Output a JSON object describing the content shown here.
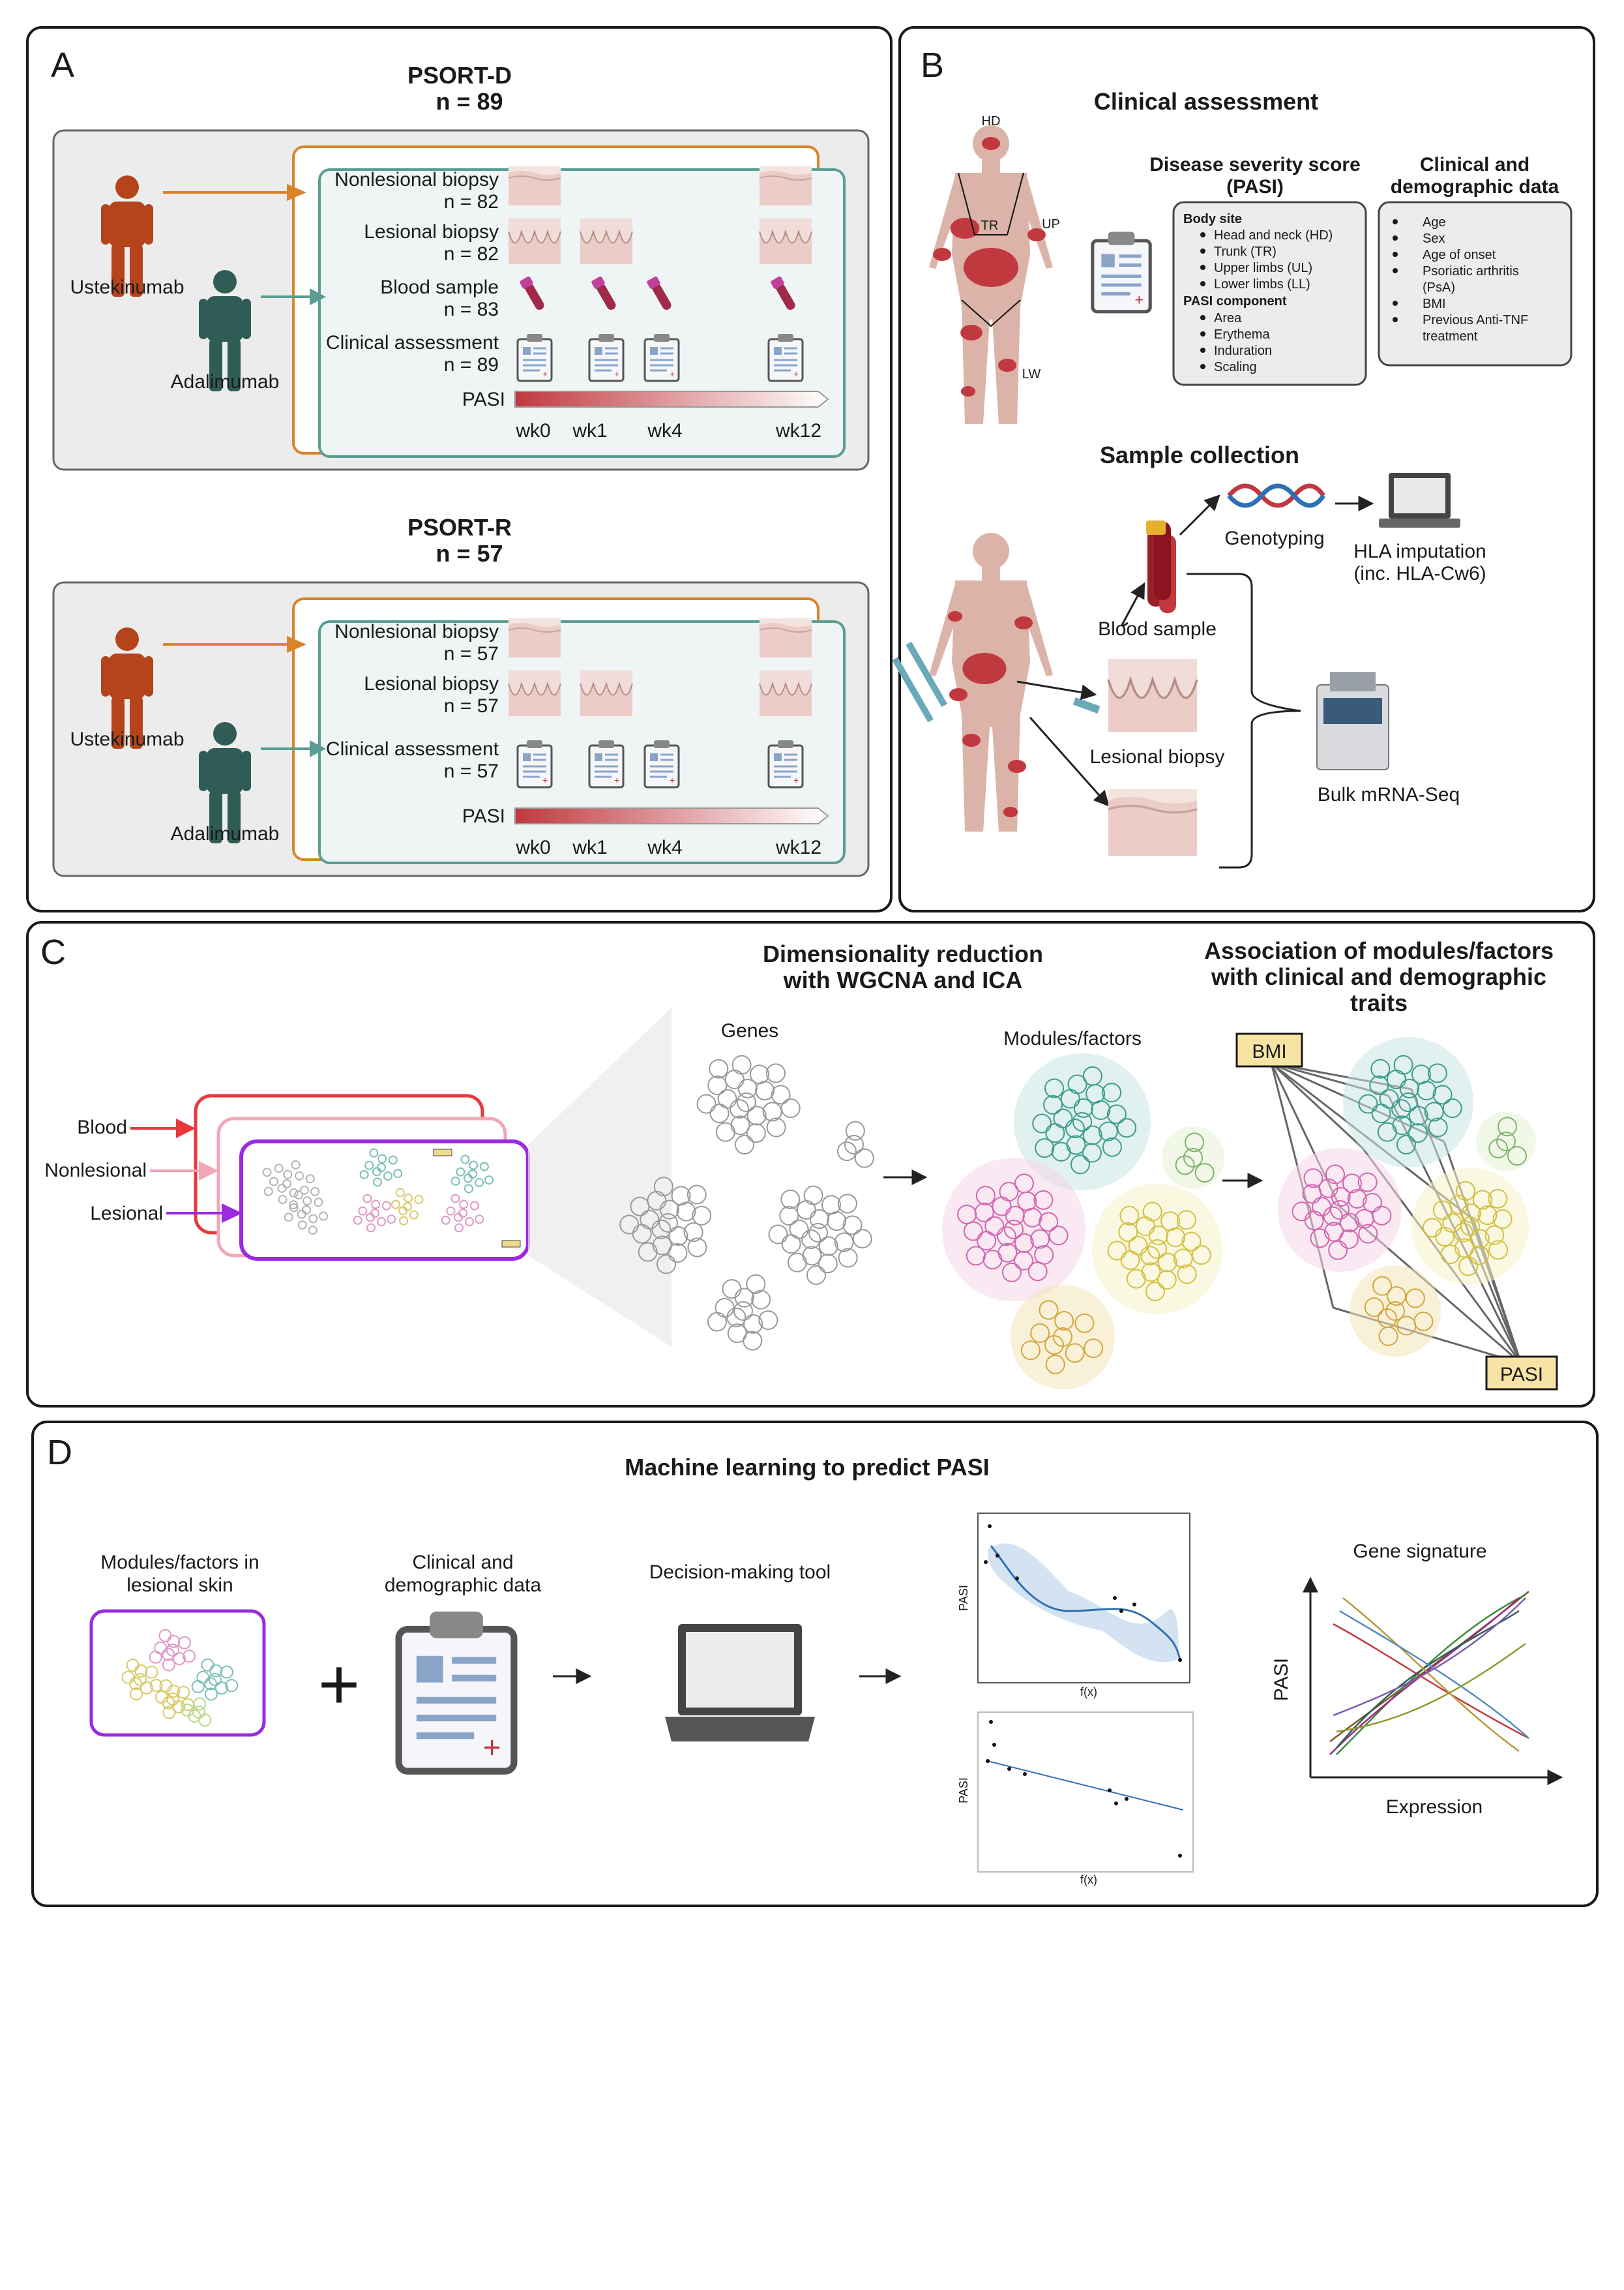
{
  "panelA": {
    "letter": "A",
    "psortd": {
      "title": "PSORT-D",
      "n": "n = 89",
      "rows": [
        {
          "label": "Nonlesional biopsy",
          "n": "n = 82"
        },
        {
          "label": "Lesional biopsy",
          "n": "n = 82"
        },
        {
          "label": "Blood sample",
          "n": "n = 83"
        },
        {
          "label": "Clinical assessment",
          "n": "n = 89"
        }
      ]
    },
    "psortr": {
      "title": "PSORT-R",
      "n": "n = 57",
      "rows": [
        {
          "label": "Nonlesional biopsy",
          "n": "n = 57"
        },
        {
          "label": "Lesional biopsy",
          "n": "n = 57"
        },
        {
          "label": "Clinical assessment",
          "n": "n = 57"
        }
      ]
    },
    "drug1": "Ustekinumab",
    "drug2": "Adalimumab",
    "pasi": "PASI",
    "weeks": [
      "wk0",
      "wk1",
      "wk4",
      "wk12"
    ]
  },
  "panelB": {
    "letter": "B",
    "title": "Clinical assessment",
    "body_labels": {
      "hd": "HD",
      "tr": "TR",
      "up": "UP",
      "lw": "LW"
    },
    "pasi_title1": "Disease severity score",
    "pasi_title2": "(PASI)",
    "body_site_head": "Body site",
    "body_site": [
      "Head and neck (HD)",
      "Trunk (TR)",
      "Upper limbs (UL)",
      "Lower limbs (LL)"
    ],
    "pasi_comp_head": "PASI component",
    "pasi_comp": [
      "Area",
      "Erythema",
      "Induration",
      "Scaling"
    ],
    "clin_title1": "Clinical and",
    "clin_title2": "demographic data",
    "clin_items": [
      "Age",
      "Sex",
      "Age of onset",
      "Psoriatic arthritis",
      "(PsA)",
      "BMI",
      "Previous Anti-TNF",
      "treatment"
    ],
    "sample_title": "Sample collection",
    "genotyping": "Genotyping",
    "hla1": "HLA imputation",
    "hla2": "(inc. HLA-Cw6)",
    "blood": "Blood sample",
    "lesional": "Lesional biopsy",
    "bulk": "Bulk mRNA-Seq"
  },
  "panelC": {
    "letter": "C",
    "title1": "Dimensionality reduction",
    "title2": "with WGCNA and ICA",
    "assoc1": "Association of modules/factors",
    "assoc2": "with clinical and demographic",
    "assoc3": "traits",
    "blood": "Blood",
    "nonlesional": "Nonlesional",
    "lesional": "Lesional",
    "genes": "Genes",
    "modules": "Modules/factors",
    "bmi": "BMI",
    "pasi": "PASI"
  },
  "panelD": {
    "letter": "D",
    "title": "Machine learning to predict PASI",
    "mod1": "Modules/factors in",
    "mod2": "lesional skin",
    "clin1": "Clinical and",
    "clin2": "demographic data",
    "tool": "Decision-making tool",
    "gene_sig": "Gene signature",
    "pasi_axis": "PASI",
    "expr_axis": "Expression",
    "small_pasi": "PASI",
    "small_fx": "f(x)"
  },
  "colors": {
    "ustekinumab": "#b5441a",
    "adalimumab": "#2f5d56",
    "orange_box": "#d9842a",
    "teal_box": "#5a9d92",
    "blood": "#e8383c",
    "nonlesional": "#f2a6b6",
    "lesional": "#9a2be0"
  }
}
